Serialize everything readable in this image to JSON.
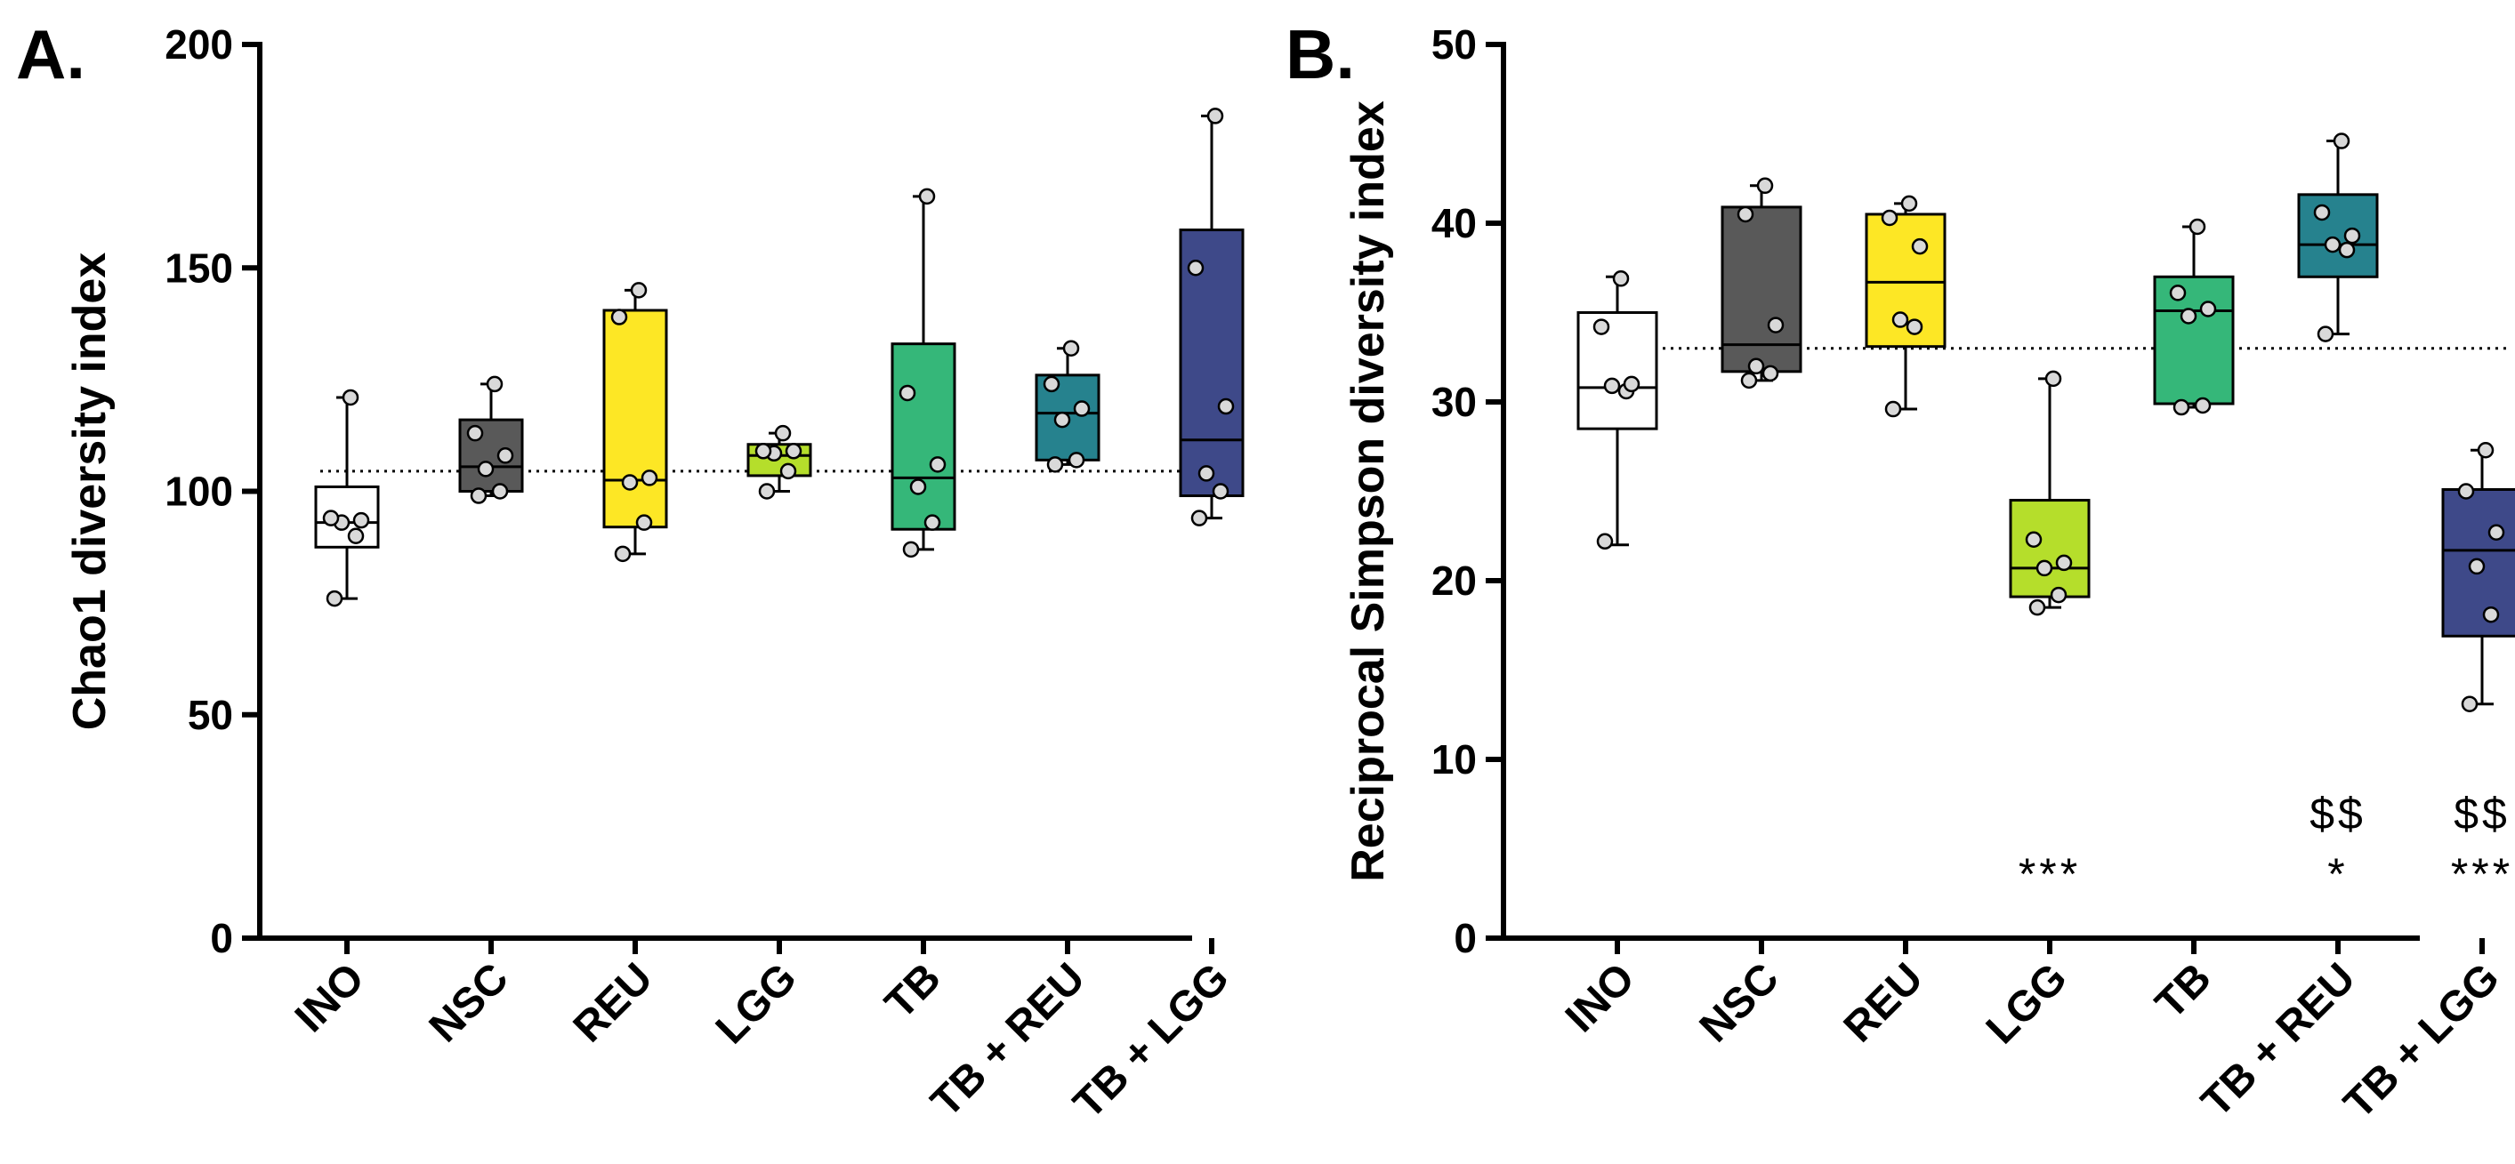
{
  "chart_data": [
    {
      "type": "box",
      "panel_label": "A.",
      "ylabel": "Chao1 diversity index",
      "ylim": [
        0,
        200
      ],
      "yticks": [
        0,
        50,
        100,
        150,
        200
      ],
      "categories": [
        "INO",
        "NSC",
        "REU",
        "LGG",
        "TB",
        "TB + REU",
        "TB + LGG"
      ],
      "colors": [
        "#ffffff",
        "#595959",
        "#fde725",
        "#b5de2b",
        "#35b779",
        "#26828e",
        "#3e4989"
      ],
      "reference_line": 104.5,
      "boxes": [
        {
          "min": 76,
          "q1": 87.5,
          "median": 93,
          "q3": 101,
          "max": 121,
          "points": [
            76,
            90,
            93,
            93.5,
            94,
            121
          ]
        },
        {
          "min": 99,
          "q1": 100,
          "median": 105.5,
          "q3": 116,
          "max": 124,
          "points": [
            99,
            100,
            105,
            108,
            113,
            124
          ]
        },
        {
          "min": 86,
          "q1": 92,
          "median": 102.5,
          "q3": 140.5,
          "max": 145,
          "points": [
            86,
            93,
            102,
            103,
            139,
            145
          ]
        },
        {
          "min": 100,
          "q1": 103.5,
          "median": 108,
          "q3": 110.5,
          "max": 113,
          "points": [
            100,
            104.5,
            108.5,
            109,
            109,
            113
          ]
        },
        {
          "min": 87,
          "q1": 91.5,
          "median": 103,
          "q3": 133,
          "max": 166,
          "points": [
            87,
            93,
            101,
            106,
            122,
            166
          ]
        },
        {
          "min": 106,
          "q1": 107,
          "median": 117.5,
          "q3": 126,
          "max": 132,
          "points": [
            106,
            107,
            116,
            118.5,
            124,
            132
          ]
        },
        {
          "min": 94,
          "q1": 99,
          "median": 111.5,
          "q3": 158.5,
          "max": 184,
          "points": [
            94,
            100,
            104,
            119,
            150,
            184
          ]
        }
      ],
      "annotations": [],
      "grid": false,
      "legend": "none"
    },
    {
      "type": "box",
      "panel_label": "B.",
      "ylabel": "Reciprocal Simpson diversity index",
      "ylim": [
        0,
        50
      ],
      "yticks": [
        0,
        10,
        20,
        30,
        40,
        50
      ],
      "categories": [
        "INO",
        "NSC",
        "REU",
        "LGG",
        "TB",
        "TB + REU",
        "TB + LGG"
      ],
      "colors": [
        "#ffffff",
        "#595959",
        "#fde725",
        "#b5de2b",
        "#35b779",
        "#26828e",
        "#3e4989"
      ],
      "reference_line": 33,
      "boxes": [
        {
          "min": 22,
          "q1": 28.5,
          "median": 30.8,
          "q3": 35,
          "max": 37,
          "points": [
            22.2,
            30.6,
            30.9,
            31.0,
            34.2,
            36.9
          ]
        },
        {
          "min": 31.2,
          "q1": 31.7,
          "median": 33.2,
          "q3": 40.9,
          "max": 42.1,
          "points": [
            31.2,
            31.6,
            32.0,
            34.3,
            40.5,
            42.1
          ]
        },
        {
          "min": 29.6,
          "q1": 33.1,
          "median": 36.7,
          "q3": 40.5,
          "max": 41.1,
          "points": [
            29.6,
            34.2,
            34.6,
            38.7,
            40.3,
            41.1
          ]
        },
        {
          "min": 18.5,
          "q1": 19.1,
          "median": 20.7,
          "q3": 24.5,
          "max": 31.3,
          "points": [
            18.5,
            19.2,
            20.7,
            21.0,
            22.3,
            31.3
          ]
        },
        {
          "min": 29.7,
          "q1": 29.9,
          "median": 35.1,
          "q3": 37,
          "max": 39.8,
          "points": [
            29.7,
            29.8,
            34.8,
            35.2,
            36.1,
            39.8
          ]
        },
        {
          "min": 33.8,
          "q1": 37,
          "median": 38.8,
          "q3": 41.6,
          "max": 44.6,
          "points": [
            33.8,
            38.5,
            38.8,
            39.3,
            40.6,
            44.6
          ]
        },
        {
          "min": 13.1,
          "q1": 16.9,
          "median": 21.7,
          "q3": 25.1,
          "max": 27.3,
          "points": [
            13.1,
            18.1,
            20.8,
            22.7,
            25.0,
            27.3
          ]
        }
      ],
      "annotations": [
        {
          "category": "LGG",
          "lines": [
            "***"
          ]
        },
        {
          "category": "TB + REU",
          "lines": [
            "$$",
            "*"
          ]
        },
        {
          "category": "TB + LGG",
          "lines": [
            "$$",
            "***"
          ]
        }
      ],
      "grid": false,
      "legend": "none"
    }
  ]
}
